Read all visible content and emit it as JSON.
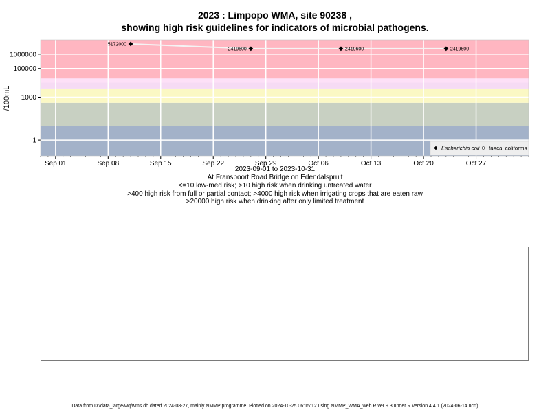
{
  "chart_data": {
    "type": "scatter",
    "title": "2023 : Limpopo WMA, site 90238 ,",
    "subtitle": "showing high risk guidelines for indicators of microbial pathogens.",
    "ylabel": "/100mL",
    "y_scale": "log",
    "y_ticks": [
      "1",
      "1000",
      "100000",
      "1000000"
    ],
    "x_ticks": [
      "Sep 01",
      "Sep 08",
      "Sep 15",
      "Sep 22",
      "Sep 29",
      "Oct 06",
      "Oct 13",
      "Oct 20",
      "Oct 27"
    ],
    "x_range": [
      "2023-08-30",
      "2023-11-03"
    ],
    "grid": true,
    "legend_position": "bottom-right",
    "background_bands": [
      {
        "from": 0.08,
        "to": 10,
        "color": "#a3b2c9"
      },
      {
        "from": 10,
        "to": 400,
        "color": "#c8d0c2"
      },
      {
        "from": 400,
        "to": 4000,
        "color": "#fbf8c4"
      },
      {
        "from": 4000,
        "to": 20000,
        "color": "#f6dbf4"
      },
      {
        "from": 20000,
        "to": 10000000,
        "color": "#ffb6c1"
      }
    ],
    "series": [
      {
        "name": "Escherichia coli",
        "marker": "diamond",
        "color": "#000000",
        "points": [
          {
            "x": "2023-09-11",
            "y": 5172000,
            "label": "5172000"
          },
          {
            "x": "2023-09-27",
            "y": 2419600,
            "label": "2419600"
          },
          {
            "x": "2023-10-09",
            "y": 2419600,
            "label": "2419600"
          },
          {
            "x": "2023-10-23",
            "y": 2419600,
            "label": "2419600"
          }
        ]
      },
      {
        "name": "faecal coliforms",
        "marker": "circle",
        "color": "#ffffff",
        "points": []
      }
    ],
    "trend_line_color": "#f4f4f4"
  },
  "captions": {
    "range": "2023-09-01 to 2023-10-31",
    "site": "At Franspoort Road Bridge on Edendalspruit",
    "risk1": "<=10 low-med risk; >10 high risk when drinking untreated water",
    "risk2": ">400 high risk from full or partial contact; >4000 high risk when irrigating crops that are eaten raw",
    "risk3": ">20000 high risk when drinking after only limited treatment"
  },
  "footer": "Data from D:/data_large/wq/wms.db dated 2024-08-27, mainly NMMP programme. Plotted on 2024-10-25 06:15:12 using NMMP_WMA_web.R ver 9.3 under R version 4.4.1 (2024-06-14 ucrt)"
}
